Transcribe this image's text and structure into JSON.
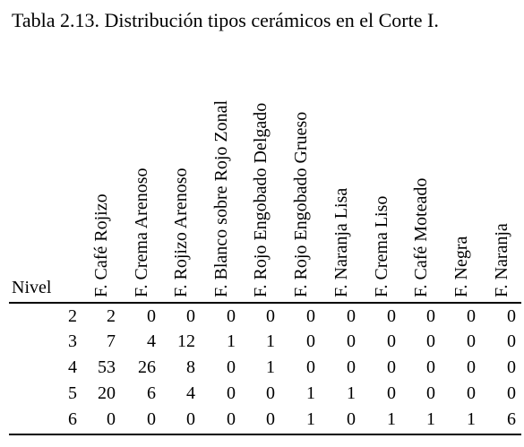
{
  "title": "Tabla 2.13. Distribución tipos cerámicos en el Corte I.",
  "row_header": "Nivel",
  "columns": [
    "F. Café Rojizo",
    "F. Crema Arenoso",
    "F. Rojizo Arenoso",
    "F. Blanco sobre Rojo Zonal",
    "F. Rojo Engobado Delgado",
    "F. Rojo Engobado Grueso",
    "F. Naranja Lisa",
    "F. Crema Liso",
    "F. Café Moteado",
    "F. Negra",
    "F. Naranja"
  ],
  "rows": [
    {
      "nivel": "2",
      "values": [
        "2",
        "0",
        "0",
        "0",
        "0",
        "0",
        "0",
        "0",
        "0",
        "0",
        "0"
      ]
    },
    {
      "nivel": "3",
      "values": [
        "7",
        "4",
        "12",
        "1",
        "1",
        "0",
        "0",
        "0",
        "0",
        "0",
        "0"
      ]
    },
    {
      "nivel": "4",
      "values": [
        "53",
        "26",
        "8",
        "0",
        "1",
        "0",
        "0",
        "0",
        "0",
        "0",
        "0"
      ]
    },
    {
      "nivel": "5",
      "values": [
        "20",
        "6",
        "4",
        "0",
        "0",
        "1",
        "1",
        "0",
        "0",
        "0",
        "0"
      ]
    },
    {
      "nivel": "6",
      "values": [
        "0",
        "0",
        "0",
        "0",
        "0",
        "1",
        "0",
        "1",
        "1",
        "1",
        "6"
      ]
    }
  ]
}
